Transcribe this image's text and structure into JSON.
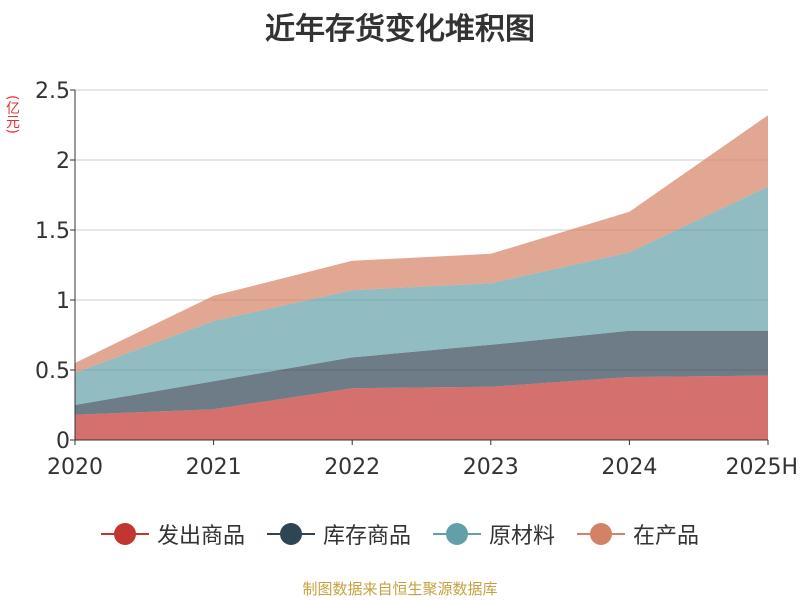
{
  "chart_data": {
    "type": "area",
    "stacked": true,
    "title": "近年存货变化堆积图",
    "y_unit": "(亿元)",
    "categories": [
      "2020",
      "2021",
      "2022",
      "2023",
      "2024",
      "2025H"
    ],
    "ylim": [
      0,
      2.5
    ],
    "y_ticks": [
      "0",
      "0.5",
      "1",
      "1.5",
      "2",
      "2.5"
    ],
    "grid": true,
    "legend_position": "bottom",
    "series": [
      {
        "name": "发出商品",
        "color": "#c23531",
        "values": [
          0.18,
          0.22,
          0.37,
          0.38,
          0.45,
          0.46
        ]
      },
      {
        "name": "库存商品",
        "color": "#2f4554",
        "values": [
          0.07,
          0.2,
          0.22,
          0.3,
          0.33,
          0.32
        ]
      },
      {
        "name": "原材料",
        "color": "#61a0a8",
        "values": [
          0.23,
          0.43,
          0.48,
          0.44,
          0.56,
          1.03
        ]
      },
      {
        "name": "在产品",
        "color": "#d48265",
        "values": [
          0.07,
          0.18,
          0.21,
          0.21,
          0.29,
          0.51
        ]
      }
    ]
  },
  "source": "制图数据来自恒生聚源数据库"
}
